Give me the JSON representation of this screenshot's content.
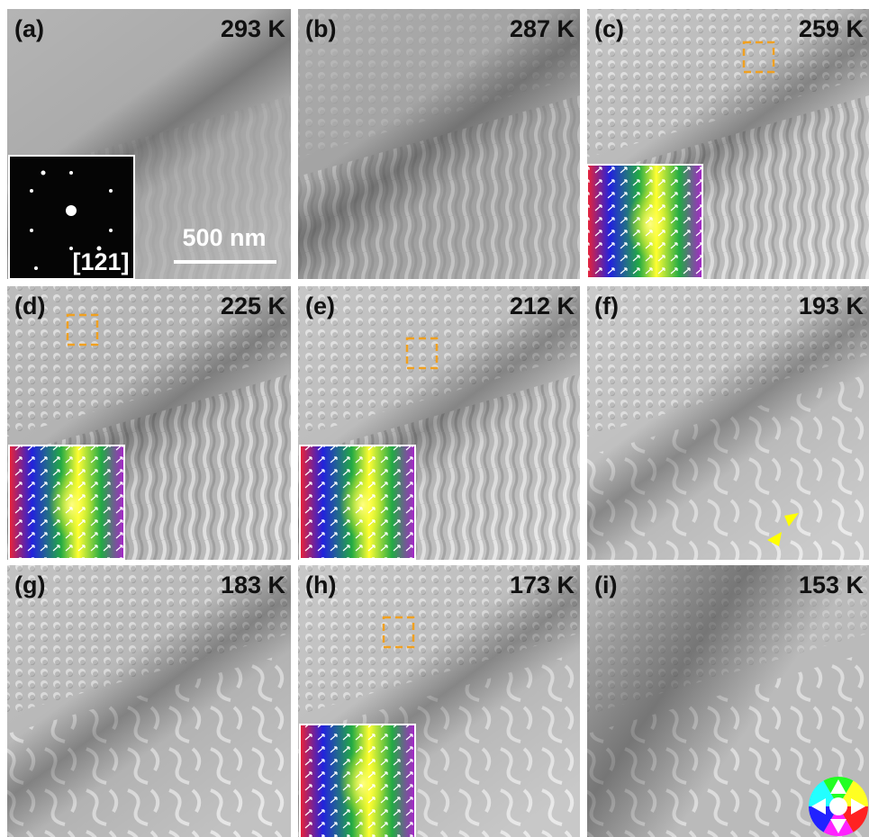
{
  "panels": [
    {
      "label": "(a)",
      "temperature": "293 K"
    },
    {
      "label": "(b)",
      "temperature": "287 K"
    },
    {
      "label": "(c)",
      "temperature": "259 K"
    },
    {
      "label": "(d)",
      "temperature": "225 K"
    },
    {
      "label": "(e)",
      "temperature": "212 K"
    },
    {
      "label": "(f)",
      "temperature": "193 K"
    },
    {
      "label": "(g)",
      "temperature": "183 K"
    },
    {
      "label": "(h)",
      "temperature": "173 K"
    },
    {
      "label": "(i)",
      "temperature": "153 K"
    }
  ],
  "scale_bar": "500 nm",
  "diffraction_zone": "[121]"
}
